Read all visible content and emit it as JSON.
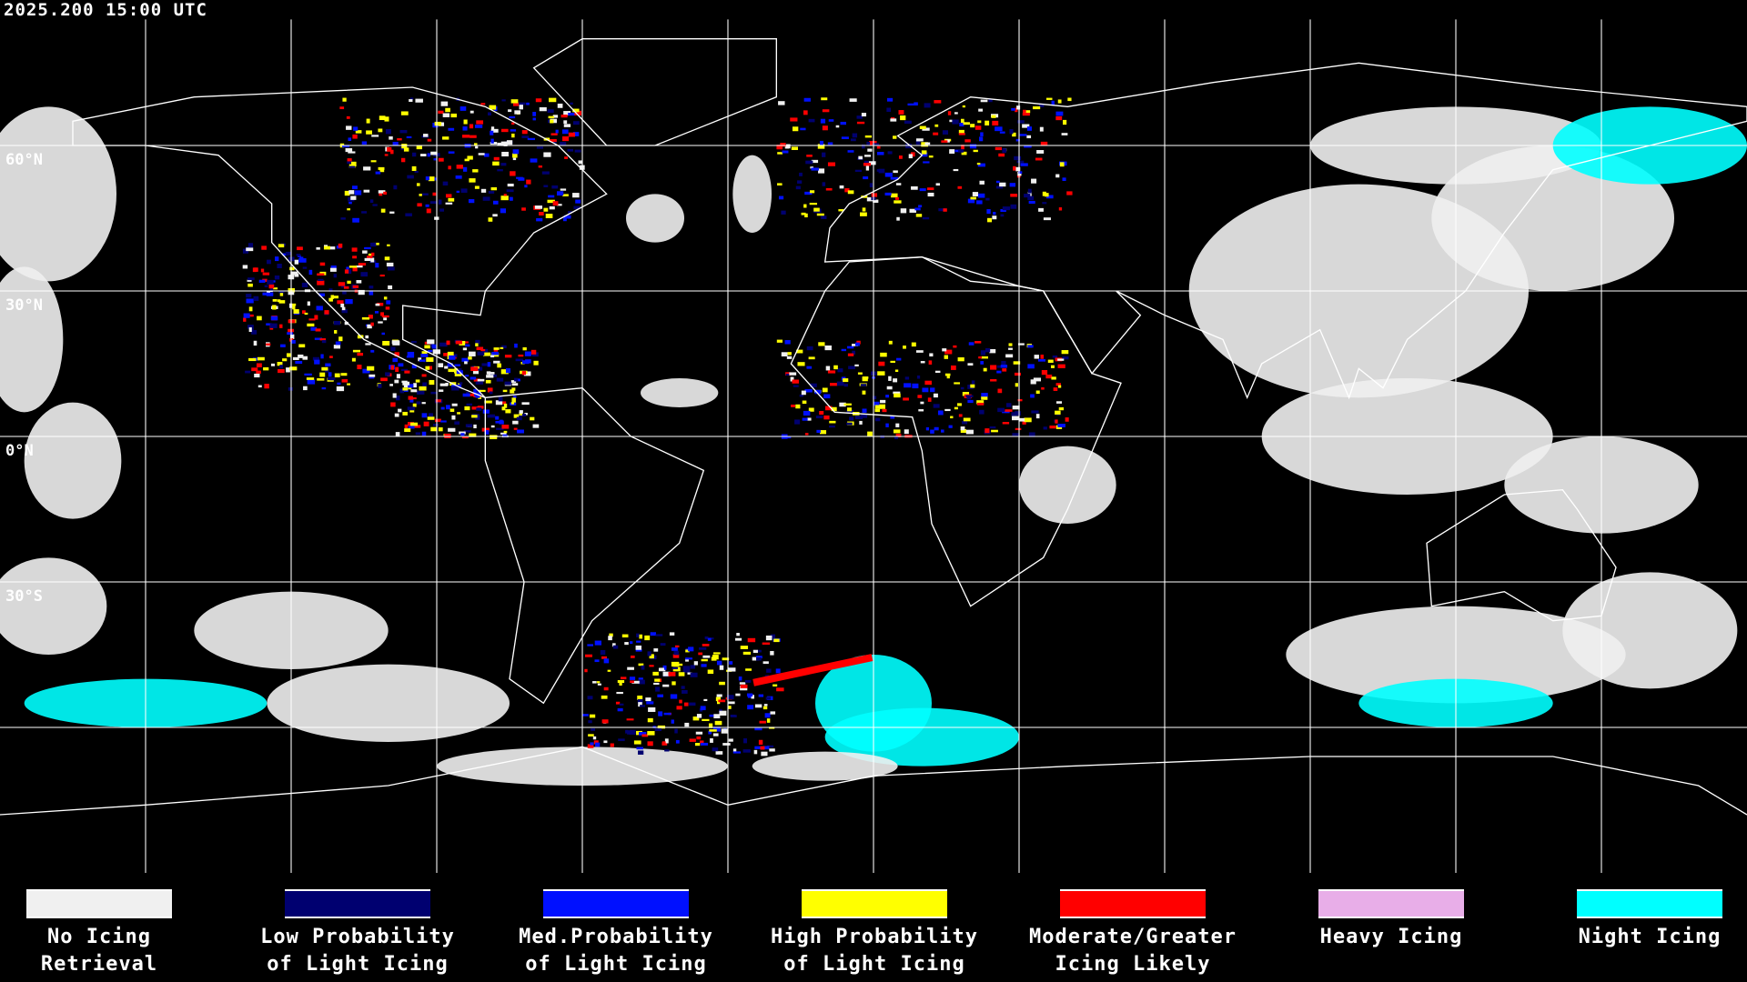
{
  "timestamp": "2025.200 15:00 UTC",
  "lat_labels": [
    "60°N",
    "30°N",
    "0°N",
    "30°S"
  ],
  "map": {
    "projection": "equirectangular",
    "grid_spacing_degrees": 30,
    "background_color": "#000000",
    "coastline_color": "#ffffff",
    "gridline_color": "#ffffff"
  },
  "legend": [
    {
      "label_line1": "No Icing",
      "label_line2": "Retrieval",
      "color": "#f0f0f0"
    },
    {
      "label_line1": "Low Probability",
      "label_line2": "of Light Icing",
      "color": "#000070"
    },
    {
      "label_line1": "Med.Probability",
      "label_line2": "of Light Icing",
      "color": "#0010ff"
    },
    {
      "label_line1": "High Probability",
      "label_line2": "of Light Icing",
      "color": "#ffff00"
    },
    {
      "label_line1": "Moderate/Greater",
      "label_line2": "Icing Likely",
      "color": "#ff0000"
    },
    {
      "label_line1": "Heavy Icing",
      "label_line2": "",
      "color": "#e8aee8"
    },
    {
      "label_line1": "Night Icing",
      "label_line2": "",
      "color": "#00ffff"
    }
  ]
}
